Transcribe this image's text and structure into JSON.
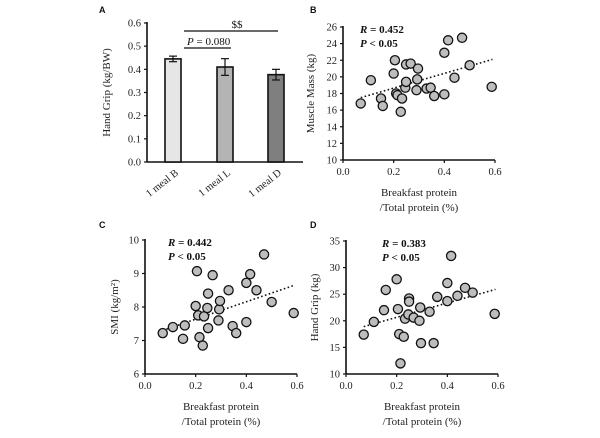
{
  "chart_data": [
    {
      "panel": "A",
      "type": "bar",
      "title": "",
      "xlabel": "",
      "ylabel": "Hand Grip (kg/BW)",
      "ylim": [
        0,
        0.6
      ],
      "yticks": [
        "0.0",
        "0.1",
        "0.2",
        "0.3",
        "0.4",
        "0.5",
        "0.6"
      ],
      "categories": [
        "1 meal B",
        "1 meal L",
        "1 meal D"
      ],
      "values": [
        0.445,
        0.41,
        0.377
      ],
      "errors": [
        0.012,
        0.036,
        0.023
      ],
      "bar_colors": [
        "#e6e6e6",
        "#b4b4b4",
        "#7f7f7f"
      ],
      "annotations": [
        {
          "text": "P = 0.080",
          "between": [
            "1 meal B",
            "1 meal L"
          ]
        },
        {
          "text": "$$",
          "between": [
            "1 meal B",
            "1 meal D"
          ]
        }
      ],
      "grid": false
    },
    {
      "panel": "B",
      "type": "scatter",
      "xlabel": "Breakfast protein /Total protein (%)",
      "xlabel_lines": [
        "Breakfast protein",
        "/Total protein (%)"
      ],
      "ylabel": "Muscle Mass (kg)",
      "xlim": [
        0,
        0.6
      ],
      "ylim": [
        10,
        26
      ],
      "xticks": [
        "0.0",
        "0.2",
        "0.4",
        "0.6"
      ],
      "yticks": [
        "10",
        "12",
        "14",
        "16",
        "18",
        "20",
        "22",
        "24",
        "26"
      ],
      "stat_r": "R = 0.452",
      "stat_p": "P < 0.05",
      "trendline": {
        "x": [
          0.07,
          0.59
        ],
        "y": [
          17.5,
          22.1
        ]
      },
      "x": [
        0.07,
        0.11,
        0.15,
        0.157,
        0.2,
        0.205,
        0.21,
        0.215,
        0.228,
        0.233,
        0.246,
        0.249,
        0.249,
        0.267,
        0.29,
        0.293,
        0.296,
        0.33,
        0.346,
        0.36,
        0.4,
        0.4,
        0.415,
        0.44,
        0.47,
        0.5,
        0.587
      ],
      "y": [
        16.8,
        19.6,
        17.4,
        16.5,
        20.4,
        22.0,
        18.0,
        17.8,
        15.8,
        17.4,
        18.7,
        19.4,
        21.5,
        21.6,
        18.4,
        19.7,
        21.0,
        18.6,
        18.7,
        17.7,
        17.9,
        22.9,
        24.4,
        19.9,
        24.7,
        21.4,
        18.8
      ],
      "grid": false
    },
    {
      "panel": "C",
      "type": "scatter",
      "xlabel": "Breakfast protein /Total protein (%)",
      "xlabel_lines": [
        "Breakfast protein",
        "/Total protein (%)"
      ],
      "ylabel": "SMI (kg/m²)",
      "xlim": [
        0,
        0.6
      ],
      "ylim": [
        6,
        10
      ],
      "xticks": [
        "0.0",
        "0.2",
        "0.4",
        "0.6"
      ],
      "yticks": [
        "6",
        "7",
        "8",
        "9",
        "10"
      ],
      "stat_r": "R = 0.442",
      "stat_p": "P < 0.05",
      "trendline": {
        "x": [
          0.07,
          0.59
        ],
        "y": [
          7.3,
          8.65
        ]
      },
      "x": [
        0.07,
        0.11,
        0.15,
        0.157,
        0.2,
        0.205,
        0.21,
        0.215,
        0.228,
        0.233,
        0.246,
        0.249,
        0.249,
        0.267,
        0.29,
        0.293,
        0.296,
        0.33,
        0.346,
        0.36,
        0.4,
        0.4,
        0.415,
        0.44,
        0.47,
        0.5,
        0.587
      ],
      "y": [
        7.22,
        7.4,
        7.05,
        7.45,
        8.03,
        9.07,
        7.75,
        7.1,
        6.85,
        7.72,
        7.97,
        7.37,
        8.4,
        8.95,
        7.6,
        7.93,
        8.18,
        8.5,
        7.43,
        7.22,
        7.55,
        8.72,
        8.98,
        8.5,
        9.57,
        8.15,
        7.82
      ],
      "grid": false
    },
    {
      "panel": "D",
      "type": "scatter",
      "xlabel": "Breakfast protein /Total protein (%)",
      "xlabel_lines": [
        "Breakfast protein",
        "/Total protein (%)"
      ],
      "ylabel": "Hand Grip (kg)",
      "xlim": [
        0,
        0.6
      ],
      "ylim": [
        10,
        35
      ],
      "xticks": [
        "0.0",
        "0.2",
        "0.4",
        "0.6"
      ],
      "yticks": [
        "10",
        "15",
        "20",
        "25",
        "30",
        "35"
      ],
      "stat_r": "R = 0.383",
      "stat_p": "P < 0.05",
      "trendline": {
        "x": [
          0.07,
          0.59
        ],
        "y": [
          18.9,
          25.9
        ]
      },
      "x": [
        0.07,
        0.11,
        0.15,
        0.157,
        0.2,
        0.205,
        0.21,
        0.215,
        0.228,
        0.233,
        0.246,
        0.249,
        0.249,
        0.267,
        0.29,
        0.293,
        0.296,
        0.33,
        0.346,
        0.36,
        0.4,
        0.4,
        0.415,
        0.44,
        0.47,
        0.5,
        0.587
      ],
      "y": [
        17.4,
        19.8,
        22.0,
        25.8,
        27.8,
        22.2,
        17.5,
        12.0,
        17.0,
        20.4,
        21.2,
        24.2,
        23.6,
        20.6,
        20.0,
        22.5,
        15.8,
        21.7,
        15.8,
        24.5,
        23.7,
        27.1,
        32.2,
        24.7,
        26.2,
        25.3,
        21.3
      ],
      "grid": false
    }
  ]
}
